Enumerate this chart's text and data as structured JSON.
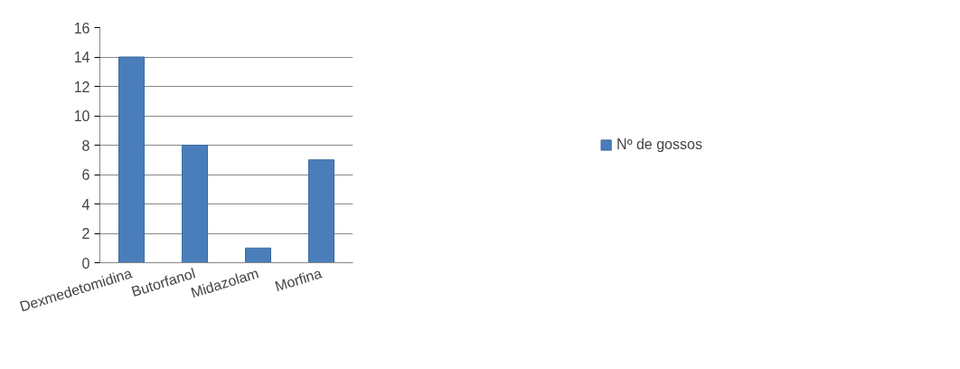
{
  "chart_data": {
    "type": "bar",
    "categories": [
      "Dexmedetomidina",
      "Butorfanol",
      "Midazolam",
      "Morfina"
    ],
    "series": [
      {
        "name": "Nº de gossos",
        "color": "#4a7ebb",
        "values": [
          14,
          8,
          1,
          7
        ]
      }
    ],
    "ylim": [
      0,
      16
    ],
    "yticks": [
      0,
      2,
      4,
      6,
      8,
      10,
      12,
      14,
      16
    ],
    "grid": "y",
    "legend": "right"
  }
}
